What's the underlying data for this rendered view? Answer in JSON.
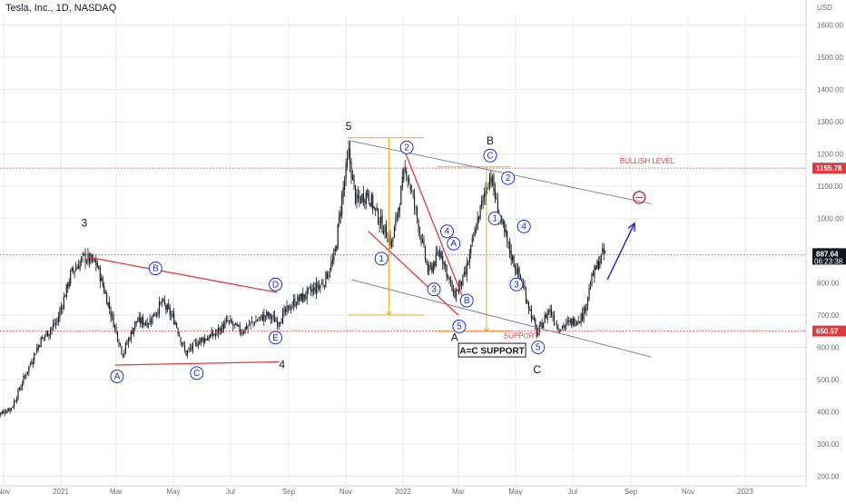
{
  "header": {
    "title": "Tesla, Inc., 1D, NASDAQ"
  },
  "colors": {
    "candle": "#131722",
    "grid": "#e8eaed",
    "blue": "#1c2fd6",
    "red": "#e0393e",
    "orange": "#f5a623",
    "gray_line": "#787b86",
    "axis_text": "#6a6d78"
  },
  "chart_data": {
    "type": "candlestick",
    "title": "Tesla, Inc., 1D, NASDAQ",
    "currency": "USD",
    "x_ticks": [
      "Nov",
      "2021",
      "Mar",
      "May",
      "Jul",
      "Sep",
      "Nov",
      "2022",
      "Mar",
      "May",
      "Jul",
      "Sep",
      "Nov",
      "2023"
    ],
    "y_ticks": [
      1600,
      1500,
      1400,
      1300,
      1200,
      1100,
      1000,
      900,
      800,
      700,
      600,
      500,
      400,
      300,
      200
    ],
    "y_tick_labels": [
      "1600.00",
      "1500.00",
      "1400.00",
      "1300.00",
      "1200.00",
      "1100.00",
      "1000.00",
      "900.00",
      "800.00",
      "700.00",
      "600.00",
      "500.00",
      "400.00",
      "300.00",
      "200.00"
    ],
    "ylim": [
      190,
      1680
    ],
    "price_path": [
      [
        "2020-10-26",
        390
      ],
      [
        "2020-11-10",
        415
      ],
      [
        "2020-11-25",
        520
      ],
      [
        "2020-12-10",
        620
      ],
      [
        "2020-12-28",
        680
      ],
      [
        "2021-01-12",
        830
      ],
      [
        "2021-01-26",
        880
      ],
      [
        "2021-02-08",
        860
      ],
      [
        "2021-02-24",
        700
      ],
      [
        "2021-03-08",
        580
      ],
      [
        "2021-03-22",
        680
      ],
      [
        "2021-04-05",
        680
      ],
      [
        "2021-04-19",
        740
      ],
      [
        "2021-05-03",
        680
      ],
      [
        "2021-05-14",
        580
      ],
      [
        "2021-05-28",
        620
      ],
      [
        "2021-06-14",
        640
      ],
      [
        "2021-06-28",
        680
      ],
      [
        "2021-07-12",
        650
      ],
      [
        "2021-07-26",
        680
      ],
      [
        "2021-08-09",
        700
      ],
      [
        "2021-08-20",
        680
      ],
      [
        "2021-09-07",
        740
      ],
      [
        "2021-09-23",
        770
      ],
      [
        "2021-10-08",
        800
      ],
      [
        "2021-10-20",
        880
      ],
      [
        "2021-10-27",
        1050
      ],
      [
        "2021-11-04",
        1200
      ],
      [
        "2021-11-12",
        1050
      ],
      [
        "2021-11-24",
        1080
      ],
      [
        "2021-12-06",
        1000
      ],
      [
        "2021-12-20",
        920
      ],
      [
        "2021-12-31",
        1100
      ],
      [
        "2022-01-04",
        1160
      ],
      [
        "2022-01-14",
        1030
      ],
      [
        "2022-01-28",
        830
      ],
      [
        "2022-02-10",
        900
      ],
      [
        "2022-02-24",
        760
      ],
      [
        "2022-03-08",
        820
      ],
      [
        "2022-03-22",
        1000
      ],
      [
        "2022-04-04",
        1140
      ],
      [
        "2022-04-14",
        1000
      ],
      [
        "2022-04-27",
        880
      ],
      [
        "2022-05-10",
        780
      ],
      [
        "2022-05-24",
        640
      ],
      [
        "2022-06-06",
        720
      ],
      [
        "2022-06-16",
        660
      ],
      [
        "2022-07-01",
        680
      ],
      [
        "2022-07-12",
        700
      ],
      [
        "2022-07-22",
        820
      ],
      [
        "2022-08-02",
        890
      ],
      [
        "2022-08-05",
        887
      ]
    ],
    "last_price": "887.64",
    "countdown": "06:23:38",
    "price_labels": [
      {
        "value": 1155.78,
        "text": "1155.78",
        "color": "red"
      },
      {
        "value": 887.64,
        "text": "887.64",
        "color": "dark"
      },
      {
        "value": 650.57,
        "text": "650.57",
        "color": "red"
      }
    ],
    "levels": [
      {
        "name": "bullish-level",
        "value": 1155.78,
        "label": "BULLISH LEVEL"
      },
      {
        "name": "support-level",
        "value": 650.57,
        "label": "SUPPORT"
      }
    ],
    "annotations": {
      "wave_labels_plain": [
        {
          "text": "3",
          "date": "2021-01-26",
          "price": 975
        },
        {
          "text": "4",
          "date": "2021-08-25",
          "price": 535
        },
        {
          "text": "5",
          "date": "2021-11-04",
          "price": 1275
        },
        {
          "text": "B",
          "date": "2022-04-04",
          "price": 1230
        },
        {
          "text": "A",
          "date": "2022-02-25",
          "price": 620
        },
        {
          "text": "C",
          "date": "2022-05-24",
          "price": 520
        }
      ],
      "wave_labels_circled": [
        {
          "text": "A",
          "date": "2021-03-02",
          "price": 510
        },
        {
          "text": "B",
          "date": "2021-04-12",
          "price": 845
        },
        {
          "text": "C",
          "date": "2021-05-26",
          "price": 520
        },
        {
          "text": "D",
          "date": "2021-08-18",
          "price": 795
        },
        {
          "text": "E",
          "date": "2021-08-18",
          "price": 630
        },
        {
          "text": "1",
          "date": "2021-12-09",
          "price": 875
        },
        {
          "text": "2",
          "date": "2022-01-05",
          "price": 1220
        },
        {
          "text": "3",
          "date": "2022-02-03",
          "price": 780
        },
        {
          "text": "4",
          "date": "2022-02-17",
          "price": 960
        },
        {
          "text": "A",
          "date": "2022-02-24",
          "price": 922
        },
        {
          "text": "B",
          "date": "2022-03-10",
          "price": 745
        },
        {
          "text": "5",
          "date": "2022-03-02",
          "price": 665
        },
        {
          "text": "C",
          "date": "2022-04-04",
          "price": 1195
        },
        {
          "text": "1",
          "date": "2022-04-09",
          "price": 1000
        },
        {
          "text": "2",
          "date": "2022-04-23",
          "price": 1125
        },
        {
          "text": "3",
          "date": "2022-05-02",
          "price": 795
        },
        {
          "text": "4",
          "date": "2022-05-10",
          "price": 975
        },
        {
          "text": "5",
          "date": "2022-05-25",
          "price": 600
        }
      ],
      "boxed_label": {
        "text": "A=C SUPPORT",
        "date": "2022-04-06",
        "price": 590
      }
    },
    "trendlines": [
      {
        "name": "triangle-upper",
        "color": "red",
        "points": [
          [
            "2021-01-30",
            880
          ],
          [
            "2021-08-20",
            770
          ]
        ]
      },
      {
        "name": "triangle-lower",
        "color": "red",
        "points": [
          [
            "2021-02-28",
            545
          ],
          [
            "2021-08-22",
            555
          ]
        ]
      },
      {
        "name": "channel-upper",
        "color": "gray",
        "points": [
          [
            "2021-11-07",
            1240
          ],
          [
            "2022-09-23",
            1045
          ]
        ]
      },
      {
        "name": "channel-lower",
        "color": "gray",
        "points": [
          [
            "2021-11-07",
            810
          ],
          [
            "2022-09-23",
            570
          ]
        ]
      },
      {
        "name": "wave-a-channel-upper",
        "color": "red",
        "points": [
          [
            "2022-01-04",
            1200
          ],
          [
            "2022-03-05",
            760
          ]
        ]
      },
      {
        "name": "wave-a-channel-lower",
        "color": "red",
        "points": [
          [
            "2021-11-25",
            960
          ],
          [
            "2022-03-01",
            700
          ]
        ]
      }
    ],
    "measures": [
      {
        "name": "measure-a",
        "x": "2021-12-17",
        "from": 1250,
        "to": 700,
        "left": "2021-11-03",
        "right": "2022-01-23"
      },
      {
        "name": "measure-c",
        "x": "2022-03-31",
        "from": 1160,
        "to": 650,
        "left": "2022-02-07",
        "right": "2022-04-26"
      }
    ],
    "target": {
      "date": "2022-09-10",
      "price": 1065
    },
    "forecast_arrow": {
      "from": [
        "2022-08-07",
        810
      ],
      "to": [
        "2022-09-05",
        985
      ]
    }
  }
}
